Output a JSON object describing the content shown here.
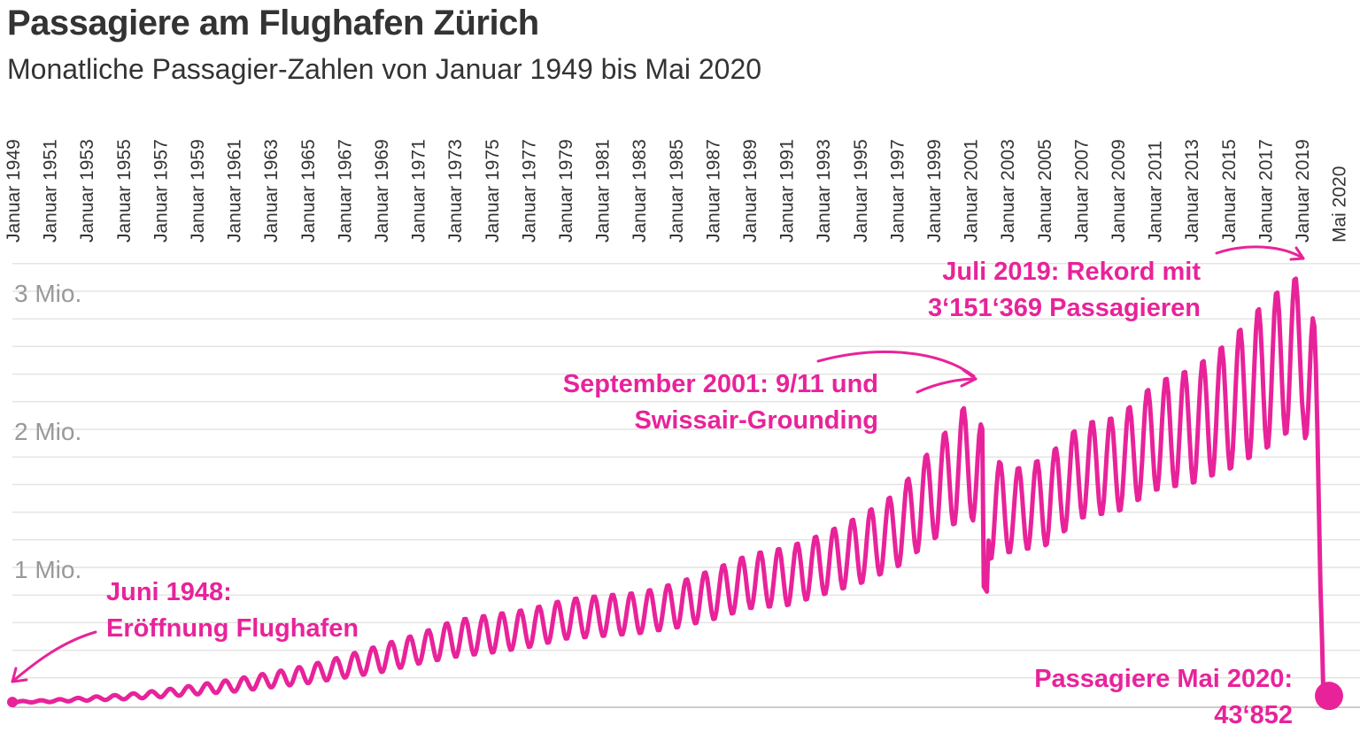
{
  "title": "Passagiere am Flughafen Zürich",
  "subtitle": "Monatliche Passagier-Zahlen von Januar 1949 bis Mai 2020",
  "colors": {
    "accent": "#E8239A",
    "grid": "#e4e4e4",
    "axis": "#cccccc",
    "text": "#333333",
    "ytick": "#999999"
  },
  "chart_data": {
    "type": "line",
    "title": "Passagiere am Flughafen Zürich",
    "subtitle": "Monatliche Passagier-Zahlen von Januar 1949 bis Mai 2020",
    "xlabel": "",
    "ylabel": "",
    "ylim": [
      0,
      3300000
    ],
    "grid": true,
    "x_tick_labels": [
      "Januar 1949",
      "Januar 1951",
      "Januar 1953",
      "Januar 1955",
      "Januar 1957",
      "Januar 1959",
      "Januar 1961",
      "Januar 1963",
      "Januar 1965",
      "Januar 1967",
      "Januar 1969",
      "Januar 1971",
      "Januar 1973",
      "Januar 1975",
      "Januar 1977",
      "Januar 1979",
      "Januar 1981",
      "Januar 1983",
      "Januar 1985",
      "Januar 1987",
      "Januar 1989",
      "Januar 1991",
      "Januar 1993",
      "Januar 1995",
      "Januar 1997",
      "Januar 1999",
      "Januar 2001",
      "Januar 2003",
      "Januar 2005",
      "Januar 2007",
      "Januar 2009",
      "Januar 2011",
      "Januar 2013",
      "Januar 2015",
      "Januar 2017",
      "Januar 2019",
      "Mai 2020"
    ],
    "y_ticks": [
      {
        "value": 1000000,
        "label": "1 Mio."
      },
      {
        "value": 2000000,
        "label": "2 Mio."
      },
      {
        "value": 3000000,
        "label": "3 Mio."
      }
    ],
    "series": [
      {
        "name": "Passagiere",
        "points": [
          {
            "year": 1949,
            "low": 20000,
            "high": 30000
          },
          {
            "year": 1951,
            "low": 25000,
            "high": 40000
          },
          {
            "year": 1953,
            "low": 35000,
            "high": 60000
          },
          {
            "year": 1955,
            "low": 45000,
            "high": 80000
          },
          {
            "year": 1957,
            "low": 60000,
            "high": 110000
          },
          {
            "year": 1959,
            "low": 80000,
            "high": 150000
          },
          {
            "year": 1961,
            "low": 100000,
            "high": 190000
          },
          {
            "year": 1963,
            "low": 130000,
            "high": 240000
          },
          {
            "year": 1965,
            "low": 160000,
            "high": 290000
          },
          {
            "year": 1967,
            "low": 200000,
            "high": 360000
          },
          {
            "year": 1969,
            "low": 240000,
            "high": 440000
          },
          {
            "year": 1971,
            "low": 300000,
            "high": 520000
          },
          {
            "year": 1973,
            "low": 350000,
            "high": 620000
          },
          {
            "year": 1975,
            "low": 380000,
            "high": 660000
          },
          {
            "year": 1977,
            "low": 420000,
            "high": 700000
          },
          {
            "year": 1979,
            "low": 480000,
            "high": 770000
          },
          {
            "year": 1981,
            "low": 500000,
            "high": 800000
          },
          {
            "year": 1983,
            "low": 520000,
            "high": 820000
          },
          {
            "year": 1985,
            "low": 560000,
            "high": 890000
          },
          {
            "year": 1987,
            "low": 620000,
            "high": 990000
          },
          {
            "year": 1989,
            "low": 700000,
            "high": 1100000
          },
          {
            "year": 1991,
            "low": 720000,
            "high": 1150000
          },
          {
            "year": 1993,
            "low": 800000,
            "high": 1250000
          },
          {
            "year": 1995,
            "low": 880000,
            "high": 1380000
          },
          {
            "year": 1997,
            "low": 1000000,
            "high": 1550000
          },
          {
            "year": 1999,
            "low": 1200000,
            "high": 1900000
          },
          {
            "year": 2000,
            "low": 1300000,
            "high": 2050000
          },
          {
            "year": 2001,
            "low": 1350000,
            "high": 2250000
          },
          {
            "year": 2002,
            "low": 1050000,
            "high": 1850000
          },
          {
            "year": 2003,
            "low": 1100000,
            "high": 1700000
          },
          {
            "year": 2005,
            "low": 1150000,
            "high": 1800000
          },
          {
            "year": 2007,
            "low": 1350000,
            "high": 2050000
          },
          {
            "year": 2009,
            "low": 1400000,
            "high": 2100000
          },
          {
            "year": 2011,
            "low": 1550000,
            "high": 2350000
          },
          {
            "year": 2013,
            "low": 1600000,
            "high": 2450000
          },
          {
            "year": 2015,
            "low": 1700000,
            "high": 2650000
          },
          {
            "year": 2017,
            "low": 1850000,
            "high": 2950000
          },
          {
            "year": 2019,
            "low": 2050000,
            "high": 3151369
          },
          {
            "year": 2020.25,
            "low": 43852,
            "high": 2350000
          }
        ],
        "highlight_points": [
          {
            "date": "Juli 2019",
            "value": 3151369
          },
          {
            "date": "Mai 2020",
            "value": 43852
          }
        ]
      }
    ],
    "annotations": [
      {
        "id": "opening",
        "lines": [
          "Juni 1948:",
          "Eröffnung Flughafen"
        ]
      },
      {
        "id": "nine-eleven",
        "lines": [
          "September 2001: 9/11 und",
          "Swissair-Grounding"
        ]
      },
      {
        "id": "record",
        "lines": [
          "Juli 2019: Rekord mit",
          "3‘151‘369 Passagieren"
        ]
      },
      {
        "id": "may2020",
        "lines": [
          "Passagiere Mai 2020:",
          "43‘852"
        ]
      }
    ]
  }
}
